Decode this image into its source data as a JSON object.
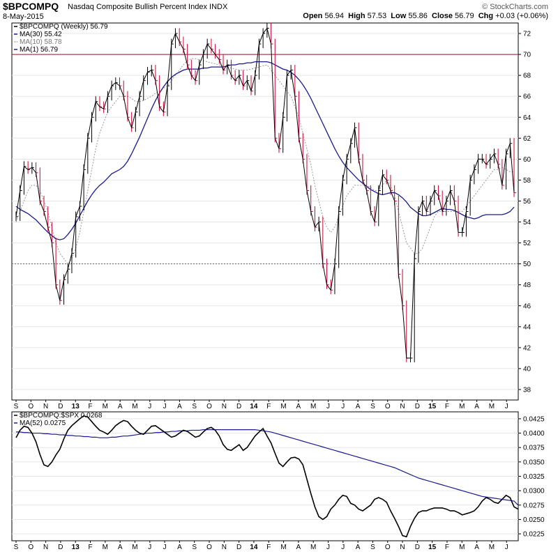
{
  "header": {
    "symbol": "$BPCOMPQ",
    "name": "Nasdaq Composite Bullish Percent Index",
    "exchange": "INDX",
    "date": "8-May-2015",
    "open_label": "Open",
    "open": "56.94",
    "high_label": "High",
    "high": "57.53",
    "low_label": "Low",
    "low": "55.86",
    "close_label": "Close",
    "close": "56.79",
    "chg_label": "Chg",
    "chg": "+0.03 (+0.06%)",
    "brand": "© StockCharts.com"
  },
  "colors": {
    "ma30": "#1a1a8c",
    "ma10": "#999999",
    "up_bar": "#000000",
    "down_bar": "#cc0033",
    "ref_line_70": "#a01030",
    "ratio_line": "#000000",
    "ratio_ma": "#1a1a8c",
    "grid": "#e6e6e6"
  },
  "chart_data": [
    {
      "type": "line",
      "title": "$BPCOMPQ (Weekly) 56.79",
      "legend_placement": "top-left",
      "legend": [
        "$BPCOMPQ (Weekly) 56.79",
        "MA(30) 55.42",
        "MA(10) 58.78",
        "MA(1) 56.79"
      ],
      "x_labels": [
        "S",
        "O",
        "N",
        "D",
        "13",
        "F",
        "M",
        "A",
        "M",
        "J",
        "J",
        "A",
        "S",
        "O",
        "N",
        "D",
        "14",
        "F",
        "M",
        "A",
        "M",
        "J",
        "J",
        "A",
        "S",
        "O",
        "N",
        "D",
        "15",
        "F",
        "M",
        "A",
        "M",
        "J"
      ],
      "x_label_bold": [
        "13",
        "14",
        "15"
      ],
      "ylim": [
        37,
        73
      ],
      "y_ticks": [
        38,
        40,
        42,
        44,
        46,
        48,
        50,
        52,
        54,
        56,
        58,
        60,
        62,
        64,
        66,
        68,
        70,
        72
      ],
      "reference_lines": [
        70,
        50
      ],
      "grid": true,
      "series": [
        {
          "name": "$BPCOMPQ (Weekly) 56.79",
          "style": "ohlc",
          "values": [
            54.5,
            57,
            59.3,
            59,
            59.2,
            58.7,
            56,
            55,
            53.5,
            52,
            48,
            46.5,
            48.5,
            49.5,
            51,
            54.5,
            55.5,
            59,
            62,
            64,
            65.5,
            65,
            64.8,
            66,
            67,
            67.3,
            67,
            66,
            64,
            63,
            64.5,
            66,
            67.5,
            68.3,
            68.5,
            67.5,
            65,
            64.5,
            67,
            71,
            72,
            71.2,
            70.5,
            69,
            68,
            67.5,
            69,
            70,
            71,
            70.5,
            70,
            69.5,
            68.5,
            69,
            68,
            67.5,
            68,
            67,
            67.5,
            66.5,
            68,
            71,
            72,
            72.5,
            71,
            62,
            61,
            64,
            68,
            68.5,
            66,
            62,
            60,
            57,
            55,
            53.5,
            54,
            50,
            48,
            47.5,
            50,
            55,
            58,
            60,
            61.5,
            63,
            60,
            58,
            57,
            55,
            54,
            57,
            58.5,
            58,
            57,
            56,
            49,
            46,
            41,
            41,
            50.5,
            55,
            56,
            55,
            56,
            57,
            56.5,
            55,
            56,
            57,
            56,
            53,
            53,
            55,
            58,
            59,
            60,
            60,
            59.5,
            60,
            60.5,
            59.5,
            57.5,
            60.5,
            61.5,
            56.79
          ]
        },
        {
          "name": "MA(30) 55.42",
          "values": [
            55.5,
            55.2,
            55,
            54.8,
            54.5,
            54.2,
            53.8,
            53.4,
            53,
            52.7,
            52.4,
            52.3,
            52.4,
            52.8,
            53.3,
            53.9,
            54.6,
            55.3,
            56,
            56.6,
            57.1,
            57.5,
            57.8,
            58.2,
            58.6,
            58.8,
            59,
            59.3,
            59.8,
            60.5,
            61.3,
            62.1,
            63,
            63.9,
            64.8,
            65.6,
            66.3,
            66.9,
            67.4,
            67.8,
            68.1,
            68.3,
            68.5,
            68.6,
            68.6,
            68.6,
            68.6,
            68.7,
            68.7,
            68.8,
            68.8,
            68.8,
            68.8,
            68.9,
            69,
            69,
            69.1,
            69.1,
            69.2,
            69.2,
            69.3,
            69.3,
            69.3,
            69.3,
            69.2,
            69,
            68.8,
            68.6,
            68.5,
            68.3,
            68,
            67.6,
            67.1,
            66.5,
            65.8,
            65,
            64.2,
            63.4,
            62.6,
            61.8,
            61,
            60.3,
            59.7,
            59.2,
            58.8,
            58.4,
            58,
            57.7,
            57.4,
            57.1,
            56.9,
            56.7,
            56.6,
            56.7,
            56.8,
            56.8,
            56.6,
            56.3,
            55.9,
            55.4,
            55.1,
            54.8,
            54.6,
            54.6,
            54.7,
            54.9,
            55.1,
            55.3,
            55.2,
            55.2,
            55.1,
            54.9,
            54.7,
            54.5,
            54.4,
            54.3,
            54.4,
            54.6,
            54.7,
            54.7,
            54.7,
            54.7,
            54.7,
            54.8,
            55,
            55.42
          ]
        },
        {
          "name": "MA(10) 58.78",
          "values": [
            54,
            55,
            56,
            57,
            57.5,
            57.5,
            57,
            56,
            55,
            53.5,
            52,
            51,
            50.5,
            50,
            50.5,
            51.5,
            53,
            55,
            57,
            59,
            61,
            62.5,
            63.5,
            64.5,
            65,
            65.5,
            66,
            66,
            66,
            65.8,
            65.5,
            65.5,
            65.6,
            65.8,
            66,
            66.3,
            66.5,
            66.8,
            67,
            67.5,
            68,
            68.5,
            69,
            69.4,
            69.6,
            69.6,
            69.5,
            69.4,
            69.3,
            69.2,
            69.1,
            69,
            68.9,
            68.8,
            68.7,
            68.6,
            68.5,
            68.5,
            68.5,
            68.6,
            68.7,
            68.8,
            68.9,
            69,
            68.5,
            68,
            67.5,
            67,
            66.5,
            66,
            65,
            64,
            62.5,
            61,
            59.5,
            57.5,
            56,
            54.5,
            53.5,
            53,
            53.5,
            54.5,
            55.5,
            56.5,
            57,
            57.5,
            57.5,
            57.5,
            57.5,
            57.3,
            57,
            57,
            57.5,
            58,
            57.5,
            56.5,
            55,
            53.5,
            52,
            51.5,
            51,
            51,
            51.5,
            52.5,
            53.5,
            54.5,
            55,
            55,
            55,
            55,
            55,
            55,
            55,
            55.5,
            56,
            56.5,
            57,
            57.5,
            58,
            58.5,
            59,
            59,
            59.2,
            59,
            58.8,
            58.78
          ]
        }
      ]
    },
    {
      "type": "line",
      "title": "$BPCOMPQ:$SPX 0.0268",
      "legend_placement": "top-left",
      "legend": [
        "$BPCOMPQ:$SPX 0.0268",
        "MA(52) 0.0275"
      ],
      "ylim": [
        0.0213,
        0.0437
      ],
      "y_ticks": [
        0.0225,
        0.025,
        0.0275,
        0.03,
        0.0325,
        0.035,
        0.0375,
        0.04,
        0.0425
      ],
      "grid": true,
      "series": [
        {
          "name": "$BPCOMPQ:$SPX 0.0268",
          "values": [
            0.0392,
            0.0405,
            0.0412,
            0.041,
            0.04,
            0.0385,
            0.0363,
            0.0345,
            0.0342,
            0.035,
            0.0362,
            0.0372,
            0.039,
            0.0405,
            0.0413,
            0.0419,
            0.0425,
            0.043,
            0.0428,
            0.042,
            0.0412,
            0.0405,
            0.0402,
            0.0398,
            0.0405,
            0.0413,
            0.0418,
            0.0422,
            0.042,
            0.0412,
            0.0405,
            0.04,
            0.0398,
            0.0405,
            0.0412,
            0.0413,
            0.0408,
            0.0403,
            0.0398,
            0.0393,
            0.0395,
            0.04,
            0.0405,
            0.0403,
            0.0398,
            0.0393,
            0.0395,
            0.0402,
            0.0408,
            0.041,
            0.0405,
            0.0395,
            0.038,
            0.0372,
            0.037,
            0.0375,
            0.038,
            0.037,
            0.0375,
            0.0385,
            0.0395,
            0.0402,
            0.0408,
            0.0395,
            0.0383,
            0.0365,
            0.0348,
            0.0342,
            0.035,
            0.0357,
            0.0358,
            0.0355,
            0.0345,
            0.032,
            0.0295,
            0.0272,
            0.0255,
            0.025,
            0.0255,
            0.0268,
            0.0275,
            0.0285,
            0.0292,
            0.029,
            0.0278,
            0.0275,
            0.0268,
            0.0265,
            0.027,
            0.0275,
            0.0285,
            0.0288,
            0.0285,
            0.028,
            0.0265,
            0.0252,
            0.0238,
            0.0222,
            0.022,
            0.0238,
            0.0252,
            0.0262,
            0.0265,
            0.0265,
            0.0268,
            0.027,
            0.027,
            0.027,
            0.0268,
            0.0265,
            0.0265,
            0.0262,
            0.0258,
            0.026,
            0.0262,
            0.0265,
            0.0272,
            0.0282,
            0.0288,
            0.0285,
            0.028,
            0.0278,
            0.0285,
            0.0292,
            0.0288,
            0.0272,
            0.0268
          ]
        },
        {
          "name": "MA(52) 0.0275",
          "values": [
            0.0402,
            0.0402,
            0.0401,
            0.0401,
            0.04,
            0.04,
            0.04,
            0.0399,
            0.0399,
            0.0398,
            0.0398,
            0.0397,
            0.0397,
            0.0396,
            0.0396,
            0.0395,
            0.0395,
            0.0394,
            0.0394,
            0.0393,
            0.0393,
            0.0392,
            0.0392,
            0.0392,
            0.0393,
            0.0393,
            0.0394,
            0.0395,
            0.0395,
            0.0396,
            0.0397,
            0.0398,
            0.0399,
            0.04,
            0.04,
            0.0401,
            0.0401,
            0.0402,
            0.0402,
            0.0403,
            0.0403,
            0.0404,
            0.0404,
            0.0404,
            0.0405,
            0.0405,
            0.0405,
            0.0406,
            0.0406,
            0.0406,
            0.0406,
            0.0406,
            0.0406,
            0.0406,
            0.0406,
            0.0406,
            0.0406,
            0.0406,
            0.0406,
            0.0406,
            0.0406,
            0.0405,
            0.0404,
            0.0403,
            0.0402,
            0.04,
            0.0398,
            0.0396,
            0.0394,
            0.0392,
            0.039,
            0.0388,
            0.0386,
            0.0384,
            0.0382,
            0.038,
            0.0378,
            0.0376,
            0.0374,
            0.0372,
            0.037,
            0.0368,
            0.0366,
            0.0364,
            0.0362,
            0.036,
            0.0358,
            0.0356,
            0.0354,
            0.0352,
            0.035,
            0.0348,
            0.0346,
            0.0344,
            0.0342,
            0.034,
            0.0337,
            0.0334,
            0.0331,
            0.0328,
            0.0325,
            0.0322,
            0.032,
            0.0318,
            0.0316,
            0.0314,
            0.0312,
            0.031,
            0.0308,
            0.0306,
            0.0304,
            0.0302,
            0.03,
            0.0298,
            0.0296,
            0.0294,
            0.0292,
            0.029,
            0.0289,
            0.0288,
            0.0287,
            0.0286,
            0.0285,
            0.0284,
            0.0283,
            0.0282,
            0.0275
          ]
        }
      ]
    }
  ]
}
